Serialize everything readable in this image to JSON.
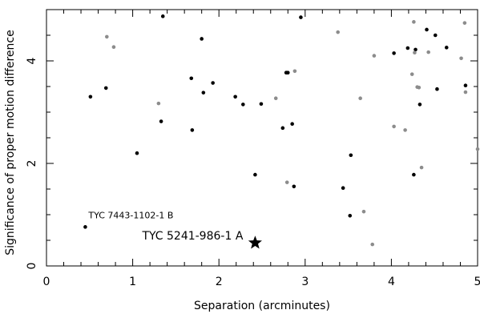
{
  "chart_data": {
    "type": "scatter",
    "xlabel": "Separation (arcminutes)",
    "ylabel": "Significance of proper motion difference",
    "xlim": [
      0,
      5
    ],
    "ylim": [
      0,
      5
    ],
    "x_ticks": [
      0,
      1,
      2,
      3,
      4,
      5
    ],
    "y_ticks": [
      0,
      2,
      4
    ],
    "grid": false,
    "colors": {
      "black_points": "#000000",
      "gray_points": "#8c8c8c",
      "star": "#000000",
      "axis": "#000000"
    },
    "series": [
      {
        "color": "black",
        "points": [
          [
            0.45,
            0.76
          ],
          [
            0.51,
            3.3
          ],
          [
            0.69,
            3.47
          ],
          [
            1.05,
            2.2
          ],
          [
            1.33,
            2.82
          ],
          [
            1.35,
            4.87
          ],
          [
            1.68,
            3.66
          ],
          [
            1.69,
            2.65
          ],
          [
            1.8,
            4.43
          ],
          [
            1.82,
            3.38
          ],
          [
            1.93,
            3.57
          ],
          [
            2.19,
            3.3
          ],
          [
            2.28,
            3.15
          ],
          [
            2.42,
            1.78
          ],
          [
            2.49,
            3.16
          ],
          [
            2.74,
            2.69
          ],
          [
            2.78,
            3.77
          ],
          [
            2.8,
            3.77
          ],
          [
            2.85,
            2.77
          ],
          [
            2.87,
            1.55
          ],
          [
            2.95,
            4.85
          ],
          [
            3.44,
            1.52
          ],
          [
            3.52,
            0.98
          ],
          [
            3.53,
            2.16
          ],
          [
            4.03,
            4.15
          ],
          [
            4.19,
            4.25
          ],
          [
            4.26,
            1.78
          ],
          [
            4.28,
            4.22
          ],
          [
            4.33,
            3.15
          ],
          [
            4.41,
            4.61
          ],
          [
            4.51,
            4.5
          ],
          [
            4.53,
            3.45
          ],
          [
            4.64,
            4.26
          ],
          [
            4.86,
            3.52
          ]
        ]
      },
      {
        "color": "gray",
        "points": [
          [
            0.7,
            4.47
          ],
          [
            0.78,
            4.27
          ],
          [
            1.3,
            3.17
          ],
          [
            2.66,
            3.27
          ],
          [
            2.79,
            1.63
          ],
          [
            2.88,
            3.8
          ],
          [
            3.38,
            4.56
          ],
          [
            3.64,
            3.27
          ],
          [
            3.68,
            1.06
          ],
          [
            3.78,
            0.42
          ],
          [
            3.8,
            4.1
          ],
          [
            4.03,
            2.72
          ],
          [
            4.16,
            2.65
          ],
          [
            4.24,
            3.74
          ],
          [
            4.26,
            4.76
          ],
          [
            4.27,
            4.16
          ],
          [
            4.3,
            3.49
          ],
          [
            4.32,
            3.48
          ],
          [
            4.35,
            1.92
          ],
          [
            4.43,
            4.17
          ],
          [
            4.81,
            4.05
          ],
          [
            4.85,
            4.74
          ],
          [
            4.86,
            3.39
          ],
          [
            5.0,
            2.28
          ]
        ]
      }
    ],
    "annotations": [
      {
        "label": "TYC 7443-1102-1 B",
        "x": 0.45,
        "y": 0.76,
        "marker": "point"
      },
      {
        "label": "TYC 5241-986-1 A",
        "x": 2.42,
        "y": 0.45,
        "marker": "star"
      }
    ]
  }
}
